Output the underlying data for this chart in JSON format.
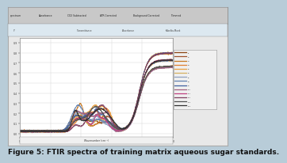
{
  "caption": "Figure 5: FTIR spectra of training matrix aqueous sugar standards.",
  "background_outer": "#b8ccd8",
  "background_window": "#e8e8e8",
  "background_plot": "#ffffff",
  "line_colors": [
    "#8B4513",
    "#A0522D",
    "#c87820",
    "#e08030",
    "#e8a040",
    "#d4b060",
    "#90a0c0",
    "#6080b0",
    "#4060a0",
    "#a06080",
    "#c04080",
    "#804060",
    "#505050",
    "#303030"
  ],
  "toolbar_color": "#d0d0d0",
  "toolbar2_color": "#e0e8f0",
  "border_color": "#888888",
  "grid_color": "#cccccc",
  "tick_color": "#444444",
  "caption_fontsize": 6.5,
  "window_border": "#aaaaaa",
  "legend_bg": "#f0f0f0",
  "legend_border": "#aaaaaa"
}
